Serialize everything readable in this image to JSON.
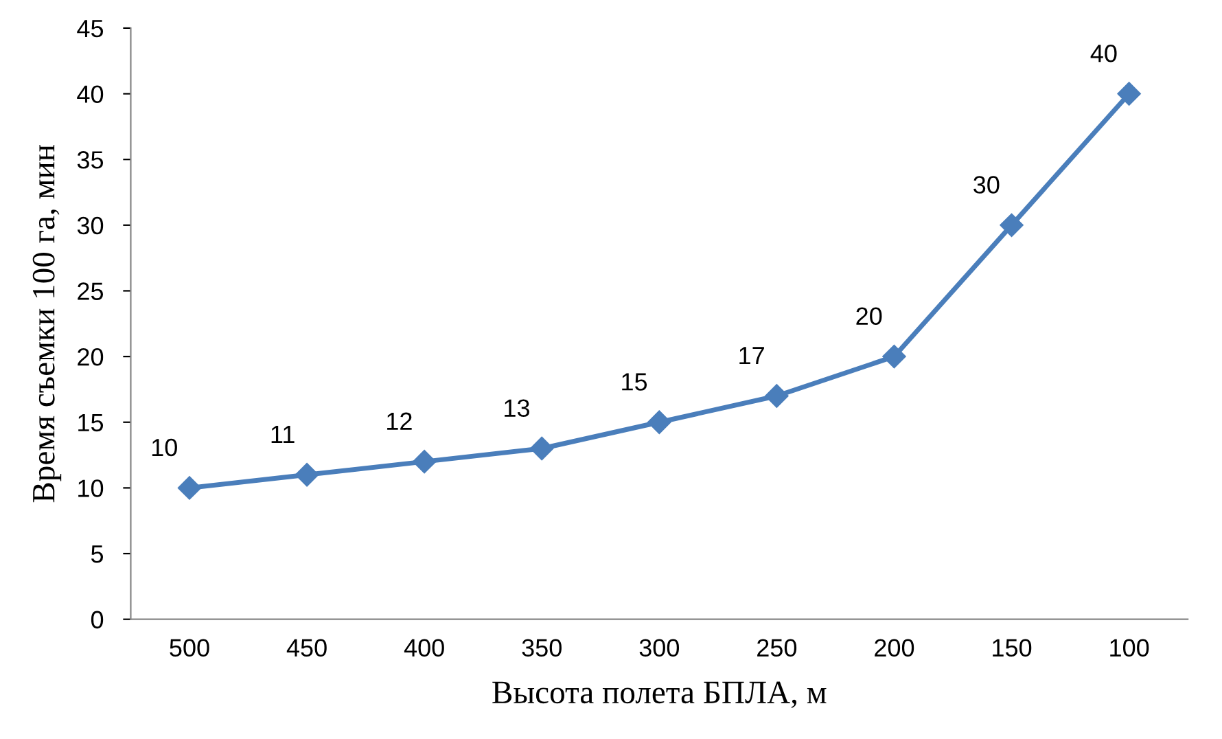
{
  "chart_data": {
    "type": "line",
    "xlabel": "Высота полета БПЛА, м",
    "ylabel": "Время съемки 100 га, мин",
    "categories": [
      "500",
      "450",
      "400",
      "350",
      "300",
      "250",
      "200",
      "150",
      "100"
    ],
    "series": [
      {
        "color": "#4a7ebb",
        "values": [
          10,
          11,
          12,
          13,
          15,
          17,
          20,
          30,
          40
        ]
      }
    ],
    "ylim": [
      0,
      45
    ],
    "yticks": [
      0,
      5,
      10,
      15,
      20,
      25,
      30,
      35,
      40,
      45
    ],
    "data_labels": true,
    "grid": false,
    "legend": false,
    "marker": "diamond",
    "line_style": "solid"
  }
}
